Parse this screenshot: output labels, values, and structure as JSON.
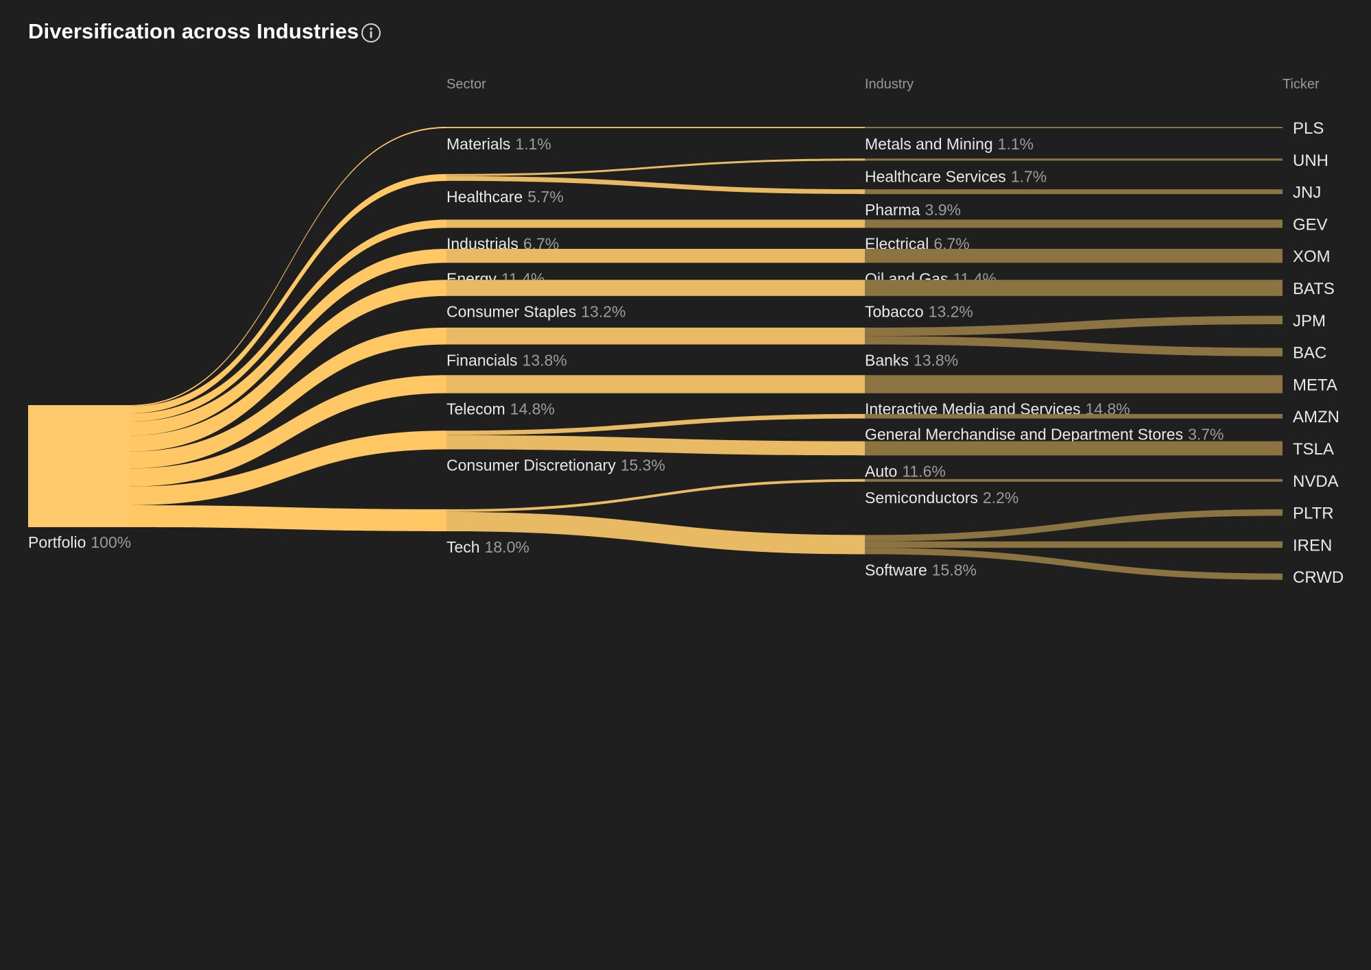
{
  "title": "Diversification across Industries",
  "info_icon": "info-icon",
  "columns": {
    "sector": "Sector",
    "industry": "Industry",
    "ticker": "Ticker"
  },
  "colors": {
    "background": "#1f1f1f",
    "portfolio": "#ffca6b",
    "sector": "#e7ba63",
    "industry": "#8c7342",
    "link": "#ffc865",
    "link_dim": "#8c7342"
  },
  "chart_data": {
    "type": "sankey",
    "title": "Diversification across Industries",
    "unit": "%",
    "root": {
      "name": "Portfolio",
      "value": 100,
      "label": "100%"
    },
    "columns": [
      "Sector",
      "Industry",
      "Ticker"
    ],
    "sectors": [
      {
        "name": "Materials",
        "value": 1.1,
        "label": "1.1%",
        "industries": [
          {
            "name": "Metals and Mining",
            "value": 1.1,
            "label": "1.1%",
            "tickers": [
              {
                "name": "PLS",
                "value": 1.1
              }
            ]
          }
        ]
      },
      {
        "name": "Healthcare",
        "value": 5.7,
        "label": "5.7%",
        "industries": [
          {
            "name": "Healthcare Services",
            "value": 1.7,
            "label": "1.7%",
            "tickers": [
              {
                "name": "UNH",
                "value": 1.7
              }
            ]
          },
          {
            "name": "Pharma",
            "value": 3.9,
            "label": "3.9%",
            "tickers": [
              {
                "name": "JNJ",
                "value": 3.9
              }
            ]
          }
        ]
      },
      {
        "name": "Industrials",
        "value": 6.7,
        "label": "6.7%",
        "industries": [
          {
            "name": "Electrical",
            "value": 6.7,
            "label": "6.7%",
            "tickers": [
              {
                "name": "GEV",
                "value": 6.7
              }
            ]
          }
        ]
      },
      {
        "name": "Energy",
        "value": 11.4,
        "label": "11.4%",
        "industries": [
          {
            "name": "Oil and Gas",
            "value": 11.4,
            "label": "11.4%",
            "tickers": [
              {
                "name": "XOM",
                "value": 11.4
              }
            ]
          }
        ]
      },
      {
        "name": "Consumer Staples",
        "value": 13.2,
        "label": "13.2%",
        "industries": [
          {
            "name": "Tobacco",
            "value": 13.2,
            "label": "13.2%",
            "tickers": [
              {
                "name": "BATS",
                "value": 13.2
              }
            ]
          }
        ]
      },
      {
        "name": "Financials",
        "value": 13.8,
        "label": "13.8%",
        "industries": [
          {
            "name": "Banks",
            "value": 13.8,
            "label": "13.8%",
            "tickers": [
              {
                "name": "JPM",
                "value": 6.9
              },
              {
                "name": "BAC",
                "value": 6.9
              }
            ]
          }
        ]
      },
      {
        "name": "Telecom",
        "value": 14.8,
        "label": "14.8%",
        "industries": [
          {
            "name": "Interactive Media and Services",
            "value": 14.8,
            "label": "14.8%",
            "tickers": [
              {
                "name": "META",
                "value": 14.8
              }
            ]
          }
        ]
      },
      {
        "name": "Consumer Discretionary",
        "value": 15.3,
        "label": "15.3%",
        "industries": [
          {
            "name": "General Merchandise and Department Stores",
            "value": 3.7,
            "label": "3.7%",
            "tickers": [
              {
                "name": "AMZN",
                "value": 3.7
              }
            ]
          },
          {
            "name": "Auto",
            "value": 11.6,
            "label": "11.6%",
            "tickers": [
              {
                "name": "TSLA",
                "value": 11.6
              }
            ]
          }
        ]
      },
      {
        "name": "Tech",
        "value": 18.0,
        "label": "18.0%",
        "industries": [
          {
            "name": "Semiconductors",
            "value": 2.2,
            "label": "2.2%",
            "tickers": [
              {
                "name": "NVDA",
                "value": 2.2
              }
            ]
          },
          {
            "name": "Software",
            "value": 15.8,
            "label": "15.8%",
            "tickers": [
              {
                "name": "PLTR",
                "value": 5.3
              },
              {
                "name": "IREN",
                "value": 5.3
              },
              {
                "name": "CRWD",
                "value": 5.2
              }
            ]
          }
        ]
      }
    ]
  }
}
